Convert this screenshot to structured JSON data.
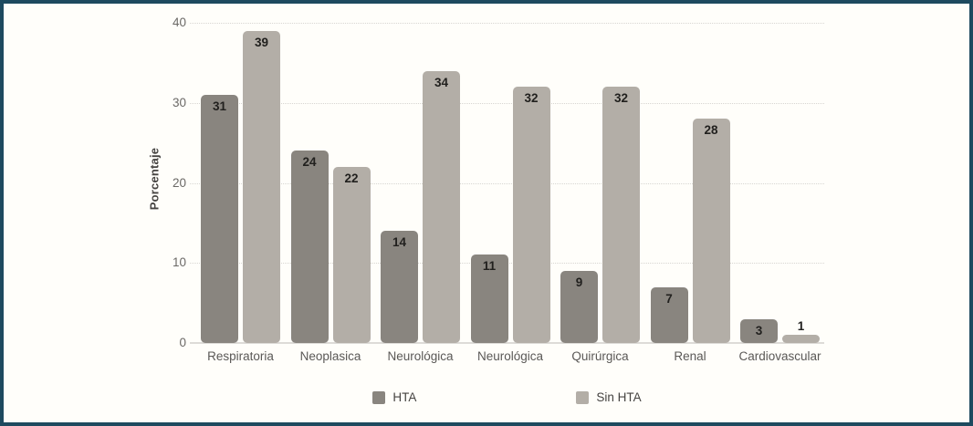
{
  "frame": {
    "border_color": "#1e4a5f",
    "background_color": "#fffefa"
  },
  "chart_data": {
    "type": "bar",
    "title": "",
    "xlabel": "",
    "ylabel": "Porcentaje",
    "ylim": [
      0,
      40
    ],
    "yticks": [
      0,
      10,
      20,
      30,
      40
    ],
    "grid": "horizontal dotted gridlines at 10,20,30,40; solid baseline at 0",
    "legend_position": "bottom-center",
    "categories": [
      "Respiratoria",
      "Neoplasica",
      "Neurológica",
      "Neurológica",
      "Quirúrgica",
      "Renal",
      "Cardiovascular"
    ],
    "series": [
      {
        "name": "HTA",
        "color": "#89857f",
        "values": [
          31,
          24,
          14,
          11,
          9,
          7,
          3
        ]
      },
      {
        "name": "Sin HTA",
        "color": "#b3aea7",
        "values": [
          39,
          22,
          34,
          32,
          32,
          28,
          1
        ]
      }
    ],
    "value_labels": "bold, dark, inside top of each bar (above bar when bar is very short)"
  }
}
